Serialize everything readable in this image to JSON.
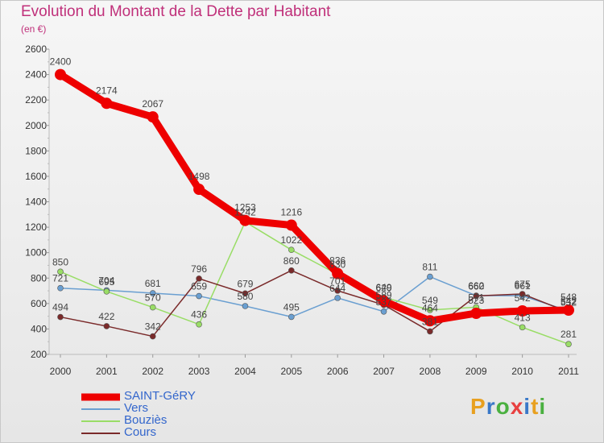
{
  "title": "Evolution du Montant de la Dette par Habitant",
  "subtitle": "(en €)",
  "logo": "Proxiti",
  "colors": {
    "title": "#c0307a",
    "legend_text": "#3366cc"
  },
  "chart_data": {
    "type": "line",
    "x": [
      "2000",
      "2001",
      "2002",
      "2003",
      "2004",
      "2005",
      "2006",
      "2007",
      "2008",
      "2009",
      "2010",
      "2011"
    ],
    "ylim": [
      200,
      2600
    ],
    "yticks": [
      200,
      400,
      600,
      800,
      1000,
      1200,
      1400,
      1600,
      1800,
      2000,
      2200,
      2400,
      2600
    ],
    "grid": false,
    "legend_position": "bottom-left",
    "series": [
      {
        "name": "SAINT-GéRY",
        "color": "#ee0000",
        "width": 9,
        "marker": 7,
        "values": [
          2400,
          2174,
          2067,
          1498,
          1253,
          1216,
          836,
          620,
          464,
          523,
          542,
          548
        ]
      },
      {
        "name": "Vers",
        "color": "#6a9fd1",
        "width": 1.5,
        "marker": 3.5,
        "values": [
          721,
          704,
          681,
          659,
          580,
          495,
          644,
          537,
          811,
          662,
          661,
          542
        ]
      },
      {
        "name": "Bouziès",
        "color": "#99dd66",
        "width": 1.5,
        "marker": 3.5,
        "values": [
          850,
          695,
          570,
          436,
          1242,
          1022,
          830,
          649,
          549,
          571,
          413,
          281
        ]
      },
      {
        "name": "Cours",
        "color": "#7a2a2a",
        "width": 1.5,
        "marker": 3.5,
        "values": [
          494,
          422,
          342,
          796,
          679,
          860,
          701,
          589,
          381,
          660,
          675,
          532
        ]
      }
    ]
  }
}
